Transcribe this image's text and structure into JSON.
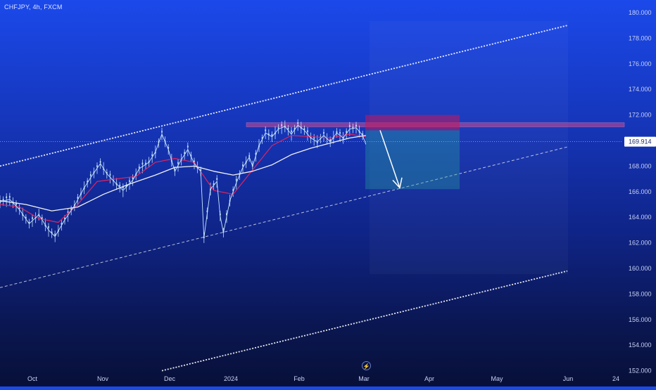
{
  "header": {
    "symbol": "CHFJPY, 4h, FXCM"
  },
  "colors": {
    "candle": "#c9e8ff",
    "ema_fast": "#e0245e",
    "sma_slow": "#f2f2f2",
    "channel": "#ffffff",
    "resistance_zone": "#d84a8c",
    "stop_zone": "#c2185b",
    "target_zone": "#26a69a",
    "last_price_bg": "#ffffff"
  },
  "icons": {
    "bottom": "lightning-icon"
  },
  "chart_data": {
    "type": "line",
    "title": "",
    "xlabel": "",
    "ylabel": "",
    "ylim": [
      152,
      181
    ],
    "y_ticks": [
      "180.000",
      "178.000",
      "176.000",
      "174.000",
      "172.000",
      "170.000",
      "168.000",
      "166.000",
      "164.000",
      "162.000",
      "160.000",
      "158.000",
      "156.000",
      "154.000",
      "152.000"
    ],
    "x_ticks": [
      "Oct",
      "Nov",
      "Dec",
      "2024",
      "Feb",
      "Mar",
      "Apr",
      "May",
      "Jun",
      "24"
    ],
    "last_price": "169.914",
    "grid": false,
    "series": [
      {
        "values": [
          [
            0,
            165.2
          ],
          [
            3,
            165.4
          ],
          [
            6,
            164.6
          ],
          [
            9,
            163.5
          ],
          [
            12,
            164.2
          ],
          [
            15,
            163.0
          ],
          [
            17,
            162.5
          ],
          [
            20,
            163.8
          ],
          [
            23,
            164.9
          ],
          [
            26,
            166.3
          ],
          [
            28,
            167.1
          ],
          [
            31,
            168.2
          ],
          [
            33,
            167.4
          ],
          [
            36,
            166.6
          ],
          [
            38,
            166.1
          ],
          [
            41,
            166.9
          ],
          [
            43,
            167.8
          ],
          [
            46,
            168.3
          ],
          [
            48,
            169.1
          ],
          [
            50,
            170.5
          ],
          [
            52,
            169.3
          ],
          [
            54,
            167.6
          ],
          [
            56,
            168.5
          ],
          [
            58,
            169.3
          ],
          [
            60,
            168.2
          ],
          [
            62,
            167.6
          ],
          [
            63,
            162.4
          ],
          [
            65,
            166.2
          ],
          [
            67,
            166.8
          ],
          [
            68,
            164.1
          ],
          [
            69,
            162.8
          ],
          [
            71,
            165.3
          ],
          [
            73,
            166.7
          ],
          [
            75,
            167.9
          ],
          [
            77,
            168.7
          ],
          [
            78,
            168.0
          ],
          [
            80,
            169.6
          ],
          [
            82,
            170.6
          ],
          [
            84,
            170.3
          ],
          [
            86,
            170.9
          ],
          [
            88,
            171.1
          ],
          [
            90,
            170.5
          ],
          [
            92,
            171.2
          ],
          [
            94,
            170.8
          ],
          [
            96,
            170.2
          ],
          [
            98,
            169.9
          ],
          [
            100,
            170.4
          ],
          [
            102,
            169.9
          ],
          [
            104,
            170.6
          ],
          [
            106,
            170.2
          ],
          [
            108,
            170.9
          ],
          [
            110,
            171.0
          ],
          [
            112,
            170.4
          ],
          [
            113,
            169.7
          ]
        ]
      },
      {
        "values": [
          [
            0,
            165.0
          ],
          [
            6,
            164.8
          ],
          [
            12,
            163.9
          ],
          [
            18,
            163.6
          ],
          [
            24,
            165.0
          ],
          [
            30,
            166.8
          ],
          [
            36,
            167.0
          ],
          [
            42,
            167.2
          ],
          [
            48,
            168.3
          ],
          [
            54,
            168.6
          ],
          [
            60,
            168.3
          ],
          [
            66,
            166.1
          ],
          [
            72,
            165.8
          ],
          [
            78,
            167.7
          ],
          [
            84,
            169.6
          ],
          [
            90,
            170.4
          ],
          [
            96,
            170.3
          ],
          [
            102,
            170.2
          ],
          [
            108,
            170.5
          ],
          [
            113,
            170.3
          ]
        ]
      },
      {
        "values": [
          [
            0,
            165.3
          ],
          [
            8,
            165.0
          ],
          [
            16,
            164.5
          ],
          [
            24,
            164.8
          ],
          [
            32,
            165.8
          ],
          [
            40,
            166.6
          ],
          [
            48,
            167.3
          ],
          [
            54,
            167.9
          ],
          [
            60,
            168.0
          ],
          [
            66,
            167.6
          ],
          [
            72,
            167.3
          ],
          [
            78,
            167.6
          ],
          [
            84,
            168.1
          ],
          [
            90,
            168.9
          ],
          [
            96,
            169.4
          ],
          [
            102,
            169.8
          ],
          [
            108,
            170.2
          ],
          [
            113,
            170.4
          ]
        ]
      }
    ]
  }
}
